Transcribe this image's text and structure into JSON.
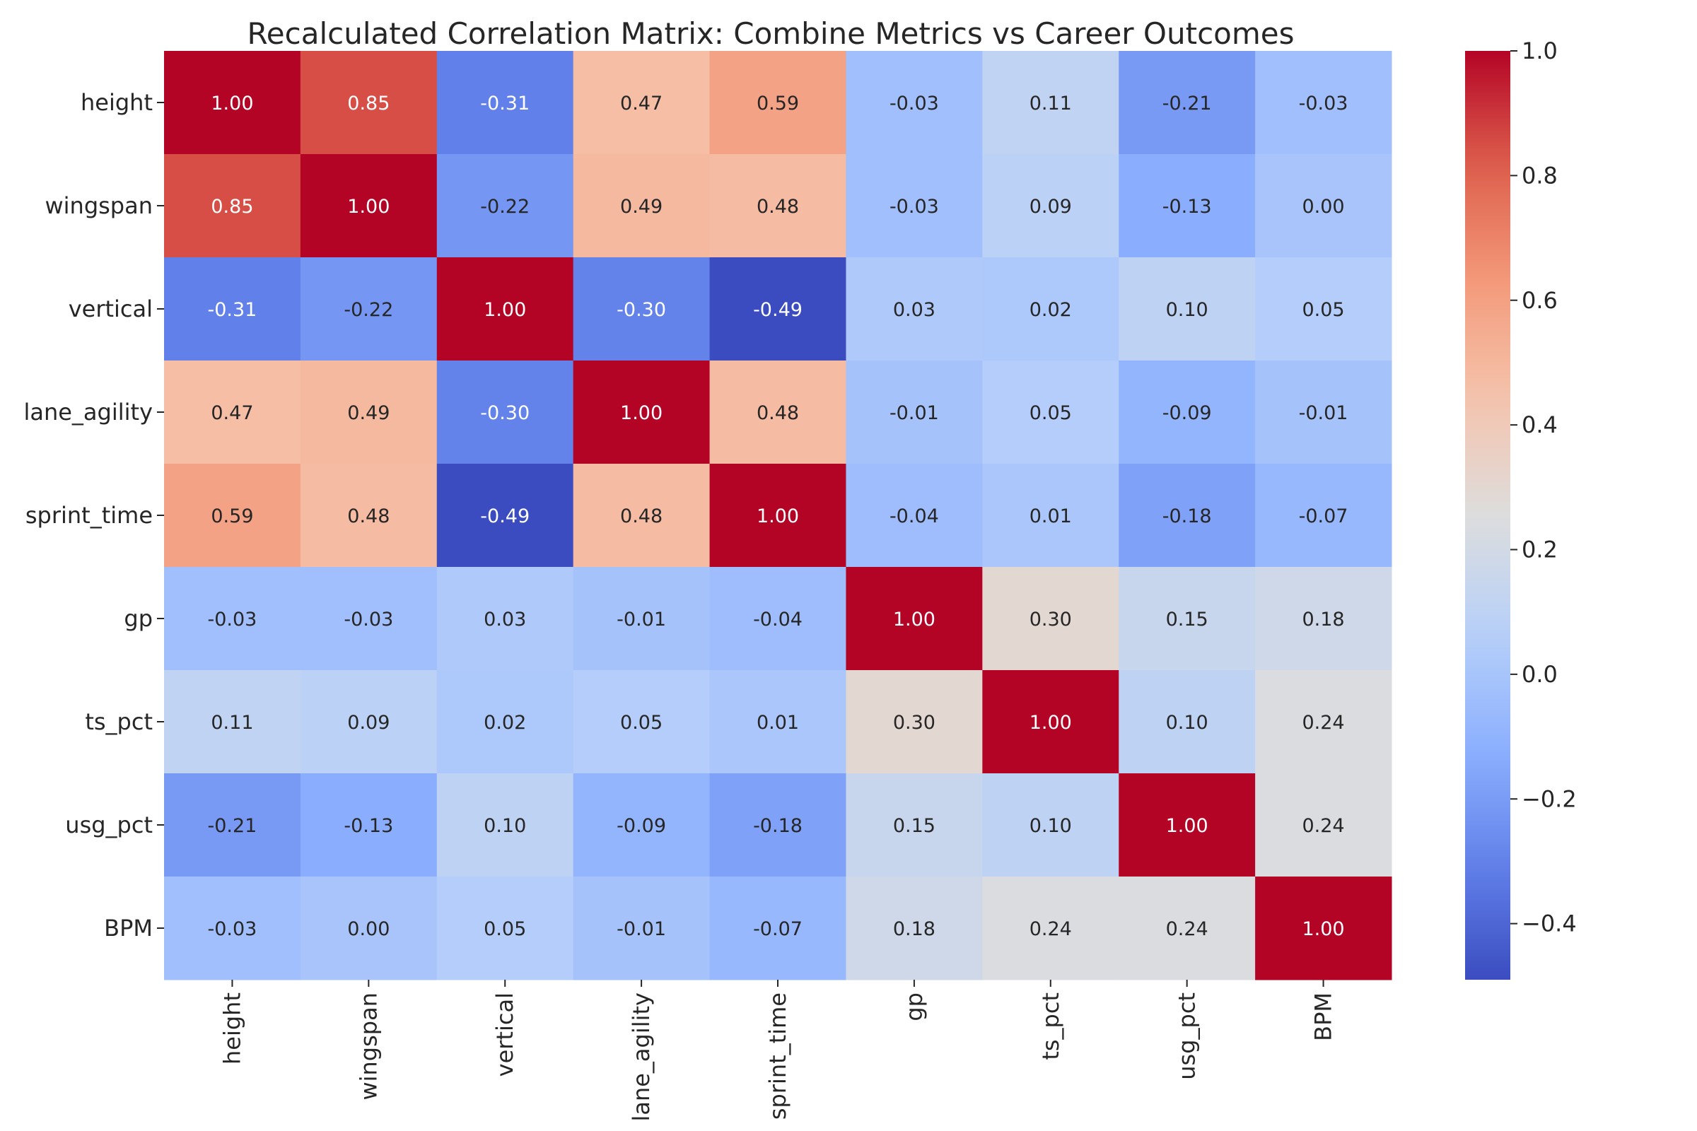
{
  "chart_data": {
    "type": "heatmap",
    "title": "Recalculated Correlation Matrix: Combine Metrics vs Career Outcomes",
    "x_labels": [
      "height",
      "wingspan",
      "vertical",
      "lane_agility",
      "sprint_time",
      "gp",
      "ts_pct",
      "usg_pct",
      "BPM"
    ],
    "y_labels": [
      "height",
      "wingspan",
      "vertical",
      "lane_agility",
      "sprint_time",
      "gp",
      "ts_pct",
      "usg_pct",
      "BPM"
    ],
    "values": [
      [
        1.0,
        0.85,
        -0.31,
        0.47,
        0.59,
        -0.03,
        0.11,
        -0.21,
        -0.03
      ],
      [
        0.85,
        1.0,
        -0.22,
        0.49,
        0.48,
        -0.03,
        0.09,
        -0.13,
        -0.0
      ],
      [
        -0.31,
        -0.22,
        1.0,
        -0.3,
        -0.49,
        0.03,
        0.02,
        0.1,
        0.05
      ],
      [
        0.47,
        0.49,
        -0.3,
        1.0,
        0.48,
        -0.01,
        0.05,
        -0.09,
        -0.01
      ],
      [
        0.59,
        0.48,
        -0.49,
        0.48,
        1.0,
        -0.04,
        0.01,
        -0.18,
        -0.07
      ],
      [
        -0.03,
        -0.03,
        0.03,
        -0.01,
        -0.04,
        1.0,
        0.3,
        0.15,
        0.18
      ],
      [
        0.11,
        0.09,
        0.02,
        0.05,
        0.01,
        0.3,
        1.0,
        0.1,
        0.24
      ],
      [
        -0.21,
        -0.13,
        0.1,
        -0.09,
        -0.18,
        0.15,
        0.1,
        1.0,
        0.24
      ],
      [
        -0.03,
        -0.0,
        0.05,
        -0.01,
        -0.07,
        0.18,
        0.24,
        0.24,
        1.0
      ]
    ],
    "colormap": "coolwarm",
    "vmin": -0.49,
    "vmax": 1.0,
    "colorbar_ticks": [
      "1.0",
      "0.8",
      "0.6",
      "0.4",
      "0.2",
      "0.0",
      "−0.2",
      "−0.4"
    ],
    "colorbar_tick_values": [
      1.0,
      0.8,
      0.6,
      0.4,
      0.2,
      0.0,
      -0.2,
      -0.4
    ],
    "annotation_format": "2 decimals"
  }
}
